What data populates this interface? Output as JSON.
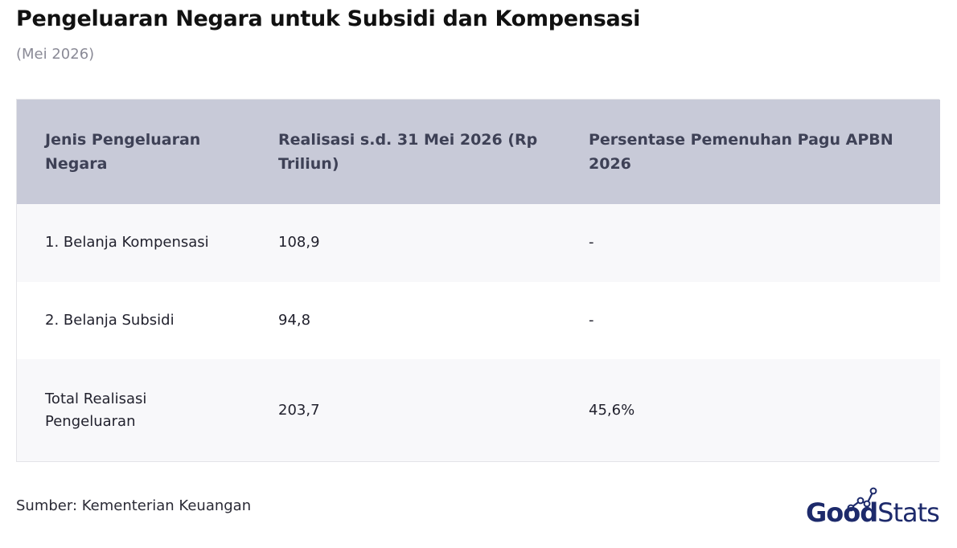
{
  "title": "Pengeluaran Negara untuk Subsidi dan Kompensasi",
  "subtitle": "(Mei 2026)",
  "source": "Sumber: Kementerian Keuangan",
  "brand": {
    "name_bold": "Good",
    "name_light": "Stats",
    "color": "#1d2a6b",
    "icon": "chart-nodes-icon"
  },
  "colors": {
    "header_bg": "#c8cad8",
    "header_text": "#3e4156",
    "row_alt_bg": "#f8f8fa"
  },
  "chart_data": {
    "type": "table",
    "columns": [
      "Jenis Pengeluaran Negara",
      "Realisasi s.d. 31 Mei 2026 (Rp Triliun)",
      "Persentase Pemenuhan Pagu APBN 2026"
    ],
    "rows": [
      [
        "1. Belanja Kompensasi",
        "108,9",
        "-"
      ],
      [
        "2. Belanja Subsidi",
        "94,8",
        "-"
      ],
      [
        "Total Realisasi Pengeluaran",
        "203,7",
        "45,6%"
      ]
    ]
  }
}
